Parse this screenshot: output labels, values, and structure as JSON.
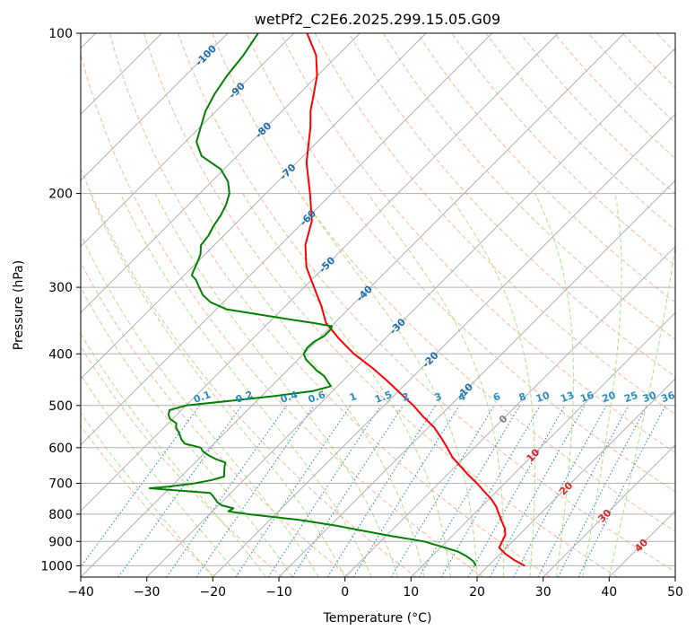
{
  "chart_data": {
    "type": "line",
    "subtype": "skew-T log-P diagram",
    "title": "wetPf2_C2E6.2025.299.15.05.G09",
    "xlabel": "Temperature (°C)",
    "ylabel": "Pressure (hPa)",
    "xlim": [
      -40,
      50
    ],
    "ylim": [
      1050,
      100
    ],
    "y_scale": "log",
    "skew": "lines of constant temperature slope up to the right at 45°",
    "grid": true,
    "x_ticks": [
      -40,
      -30,
      -20,
      -10,
      0,
      10,
      20,
      30,
      40,
      50
    ],
    "x_tick_labels": [
      "−40",
      "−30",
      "−20",
      "−10",
      "0",
      "10",
      "20",
      "30",
      "40",
      "50"
    ],
    "y_ticks": [
      1000,
      900,
      800,
      700,
      600,
      500,
      400,
      300,
      200,
      100
    ],
    "y_tick_labels": [
      "1000",
      "900",
      "800",
      "700",
      "600",
      "500",
      "400",
      "300",
      "200",
      "100"
    ],
    "series": [
      {
        "role": "temperature",
        "color": "#ff0000",
        "pressure": [
          1000,
          975,
          950,
          925,
          900,
          875,
          850,
          825,
          800,
          775,
          750,
          725,
          700,
          675,
          650,
          625,
          600,
          575,
          550,
          525,
          500,
          475,
          450,
          425,
          400,
          375,
          350,
          325,
          300,
          275,
          250,
          225,
          200,
          175,
          150,
          140,
          130,
          120,
          110,
          100
        ],
        "temperature": [
          25.5,
          23.0,
          20.8,
          18.9,
          18.4,
          17.9,
          16.8,
          15.3,
          13.8,
          12.3,
          10.4,
          8.1,
          5.8,
          3.2,
          0.7,
          -1.9,
          -4.1,
          -6.5,
          -9.1,
          -12.4,
          -15.6,
          -19.3,
          -23.2,
          -27.5,
          -32.4,
          -36.9,
          -41.3,
          -44.6,
          -48.5,
          -52.7,
          -56.2,
          -58.9,
          -63.3,
          -68.5,
          -73.3,
          -75.7,
          -77.8,
          -80.1,
          -83.3,
          -88.0
        ]
      },
      {
        "role": "dewpoint",
        "color": "#008000",
        "pressure": [
          1000,
          980,
          960,
          940,
          920,
          900,
          880,
          860,
          840,
          820,
          800,
          790,
          780,
          770,
          760,
          750,
          740,
          730,
          720,
          715,
          710,
          700,
          690,
          680,
          670,
          660,
          650,
          640,
          630,
          620,
          610,
          600,
          590,
          580,
          570,
          560,
          550,
          540,
          530,
          520,
          510,
          500,
          490,
          480,
          470,
          460,
          450,
          440,
          430,
          420,
          410,
          400,
          390,
          380,
          370,
          360,
          355,
          350,
          345,
          340,
          335,
          330,
          320,
          310,
          300,
          290,
          285,
          280,
          270,
          260,
          250,
          240,
          230,
          220,
          210,
          200,
          190,
          180,
          170,
          160,
          150,
          140,
          130,
          120,
          110,
          100
        ],
        "dewpoint": [
          18.1,
          17.0,
          15.3,
          13.2,
          9.9,
          6.6,
          1.0,
          -4.1,
          -9.3,
          -15.6,
          -24.2,
          -27.6,
          -27.3,
          -29.5,
          -30.6,
          -31.4,
          -32.2,
          -33.1,
          -39.9,
          -43.0,
          -40.4,
          -36.9,
          -34.8,
          -33.5,
          -34.0,
          -34.5,
          -35.0,
          -35.4,
          -37.5,
          -39.1,
          -40.5,
          -41.4,
          -44.4,
          -45.5,
          -46.3,
          -47.2,
          -48.2,
          -48.8,
          -50.4,
          -51.3,
          -51.8,
          -50.0,
          -44.0,
          -38.0,
          -33.0,
          -31.0,
          -32.3,
          -33.6,
          -35.5,
          -37.1,
          -38.8,
          -40.0,
          -40.4,
          -40.3,
          -39.6,
          -39.6,
          -39.9,
          -43.2,
          -47.0,
          -50.8,
          -54.5,
          -58.4,
          -61.9,
          -64.2,
          -65.9,
          -67.6,
          -68.8,
          -69.2,
          -69.9,
          -70.7,
          -72.0,
          -72.3,
          -73.0,
          -73.5,
          -74.3,
          -75.5,
          -77.5,
          -80.5,
          -85.4,
          -88.3,
          -89.9,
          -91.6,
          -92.8,
          -93.7,
          -94.3,
          -95.4
        ]
      }
    ],
    "isotherm_labels": [
      {
        "text": "-100",
        "t": -100,
        "p": 110
      },
      {
        "text": "-90",
        "t": -90,
        "p": 128
      },
      {
        "text": "-80",
        "t": -80,
        "p": 152
      },
      {
        "text": "-70",
        "t": -70,
        "p": 182
      },
      {
        "text": "-60",
        "t": -60,
        "p": 222
      },
      {
        "text": "-50",
        "t": -50,
        "p": 272
      },
      {
        "text": "-40",
        "t": -40,
        "p": 308
      },
      {
        "text": "-30",
        "t": -30,
        "p": 355
      },
      {
        "text": "-20",
        "t": -20,
        "p": 410
      },
      {
        "text": "-10",
        "t": -10,
        "p": 470
      },
      {
        "text": "0",
        "t": 0,
        "p": 530
      },
      {
        "text": "10",
        "t": 10,
        "p": 620
      },
      {
        "text": "20",
        "t": 20,
        "p": 715
      },
      {
        "text": "30",
        "t": 30,
        "p": 805
      },
      {
        "text": "40",
        "t": 40,
        "p": 915
      }
    ],
    "mixing_ratio_labels": [
      "0.1",
      "0.2",
      "0.4",
      "0.6",
      "1",
      "1.5",
      "2",
      "3",
      "4",
      "6",
      "8",
      "10",
      "13",
      "16",
      "20",
      "25",
      "30",
      "36"
    ],
    "colors": {
      "temperature_line": "#ff0000",
      "dewpoint_line": "#008000",
      "grid": "#b0b0b0",
      "dry_adiabat": "#f4a582",
      "moist_adiabat": "#a6d96a",
      "mixing_ratio": "#2b8cbe",
      "isotherm_label_cold": "#1f6fa8",
      "isotherm_label_zero": "#808080",
      "isotherm_label_warm": "#d62728",
      "mixing_ratio_label": "#2b8cbe"
    }
  }
}
